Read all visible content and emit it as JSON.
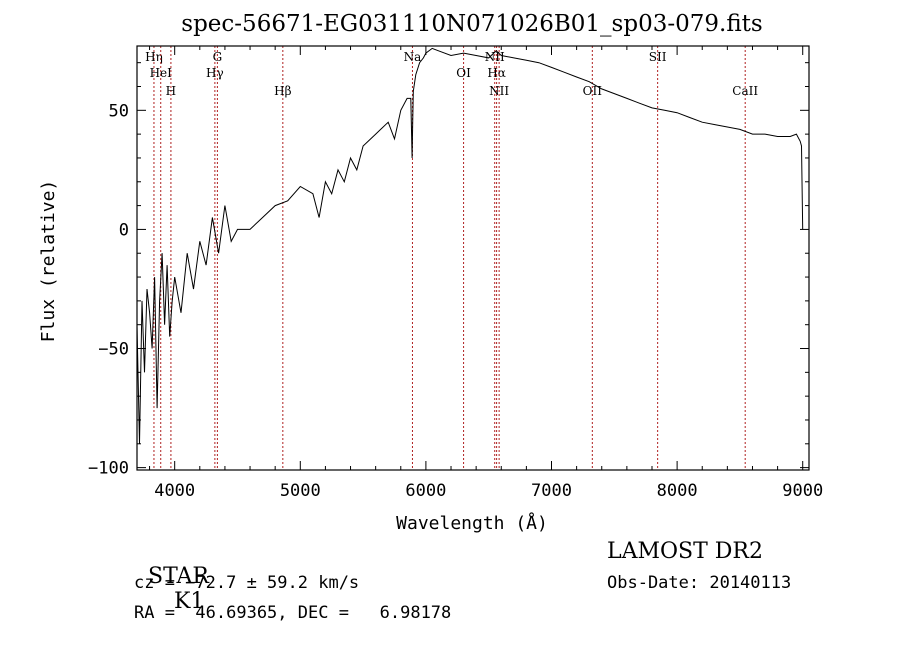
{
  "chart_data": {
    "type": "line",
    "title": "spec-56671-EG031110N071026B01_sp03-079.fits",
    "xlabel": "Wavelength (Å)",
    "ylabel": "Flux (relative)",
    "xlim": [
      3700,
      9050
    ],
    "ylim": [
      -101,
      77
    ],
    "xticks": [
      4000,
      5000,
      6000,
      7000,
      8000,
      9000
    ],
    "yticks": [
      -100,
      -50,
      0,
      50
    ],
    "grid": false,
    "line_color": "#000000",
    "marker_color": "#b02020",
    "series": [
      {
        "x": [
          3700,
          3720,
          3740,
          3760,
          3780,
          3800,
          3820,
          3840,
          3860,
          3880,
          3900,
          3920,
          3940,
          3960,
          3980,
          4000,
          4050,
          4100,
          4150,
          4200,
          4250,
          4300,
          4350,
          4400,
          4450,
          4500,
          4600,
          4700,
          4800,
          4900,
          5000,
          5100,
          5150,
          5200,
          5250,
          5300,
          5350,
          5400,
          5450,
          5500,
          5600,
          5700,
          5750,
          5800,
          5850,
          5880,
          5890,
          5895,
          5900,
          5920,
          5950,
          5980,
          6000,
          6050,
          6100,
          6200,
          6300,
          6400,
          6500,
          6560,
          6600,
          6700,
          6800,
          6900,
          7000,
          7100,
          7200,
          7300,
          7400,
          7500,
          7600,
          7700,
          7800,
          7900,
          8000,
          8100,
          8200,
          8300,
          8400,
          8500,
          8600,
          8700,
          8800,
          8900,
          8950,
          8980,
          8990,
          9000
        ],
        "values": [
          -40,
          -90,
          -30,
          -60,
          -25,
          -35,
          -50,
          -20,
          -75,
          -30,
          -10,
          -40,
          -15,
          -45,
          -30,
          -20,
          -35,
          -10,
          -25,
          -5,
          -15,
          5,
          -10,
          10,
          -5,
          0,
          0,
          5,
          10,
          12,
          18,
          15,
          5,
          20,
          15,
          25,
          20,
          30,
          25,
          35,
          40,
          45,
          38,
          50,
          55,
          55,
          30,
          45,
          58,
          65,
          70,
          72,
          74,
          76,
          75,
          73,
          74,
          73,
          72,
          75,
          73,
          72,
          71,
          70,
          68,
          66,
          64,
          62,
          59,
          57,
          55,
          53,
          51,
          50,
          49,
          47,
          45,
          44,
          43,
          42,
          40,
          40,
          39,
          39,
          40,
          37,
          35,
          0
        ]
      }
    ],
    "line_markers": [
      {
        "label": "Hη",
        "x": 3835
      },
      {
        "label": "HeI",
        "x": 3889
      },
      {
        "label": "H",
        "x": 3970
      },
      {
        "label": "Hγ",
        "x": 4320
      },
      {
        "label": "G",
        "x": 4340
      },
      {
        "label": "Hβ",
        "x": 4861
      },
      {
        "label": "Na",
        "x": 5893
      },
      {
        "label": "OI",
        "x": 6300
      },
      {
        "label": "NII",
        "x": 6548
      },
      {
        "label": "Hα",
        "x": 6563
      },
      {
        "label": "NII",
        "x": 6583
      },
      {
        "label": "OII",
        "x": 7325
      },
      {
        "label": "SII",
        "x": 7845
      },
      {
        "label": "CaII",
        "x": 8542
      }
    ]
  },
  "info": {
    "class_label": "STAR",
    "subclass": "K1",
    "cz": "cz = −72.7 ± 59.2 km/s",
    "coords": "RA =  46.69365, DEC =   6.98178",
    "survey": "LAMOST DR2",
    "obs_date": "Obs-Date: 20140113"
  }
}
